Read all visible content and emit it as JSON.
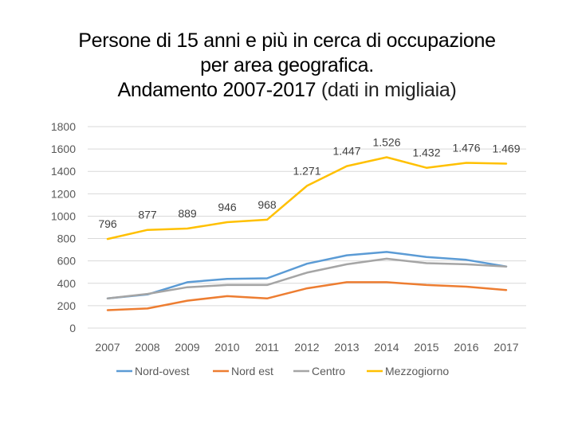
{
  "title": {
    "line1": "Persone di 15 anni e più in cerca di occupazione",
    "line2": "per area geografica.",
    "line3_main": "Andamento 2007-2017",
    "line3_sub": "(dati in migliaia)"
  },
  "chart_data": {
    "type": "line",
    "categories": [
      "2007",
      "2008",
      "2009",
      "2010",
      "2011",
      "2012",
      "2013",
      "2014",
      "2015",
      "2016",
      "2017"
    ],
    "ylim": [
      0,
      1800
    ],
    "yticks": [
      "0",
      "200",
      "400",
      "600",
      "800",
      "1000",
      "1200",
      "1400",
      "1600",
      "1800"
    ],
    "grid": true,
    "legend": "bottom",
    "series": [
      {
        "name": "Nord-ovest",
        "color": "#5b9bd5",
        "values": [
          265,
          300,
          410,
          440,
          445,
          575,
          650,
          680,
          635,
          610,
          550
        ]
      },
      {
        "name": "Nord est",
        "color": "#ed7d31",
        "values": [
          160,
          175,
          245,
          285,
          265,
          355,
          410,
          410,
          385,
          370,
          340
        ]
      },
      {
        "name": "Centro",
        "color": "#a5a5a5",
        "values": [
          265,
          305,
          365,
          385,
          385,
          495,
          570,
          620,
          580,
          570,
          550
        ]
      },
      {
        "name": "Mezzogiorno",
        "color": "#ffc000",
        "values": [
          796,
          877,
          889,
          946,
          968,
          1271,
          1447,
          1526,
          1432,
          1476,
          1469
        ],
        "labels": [
          "796",
          "877",
          "889",
          "946",
          "968",
          "1.271",
          "1.447",
          "1.526",
          "1.432",
          "1.476",
          "1.469"
        ]
      }
    ]
  }
}
